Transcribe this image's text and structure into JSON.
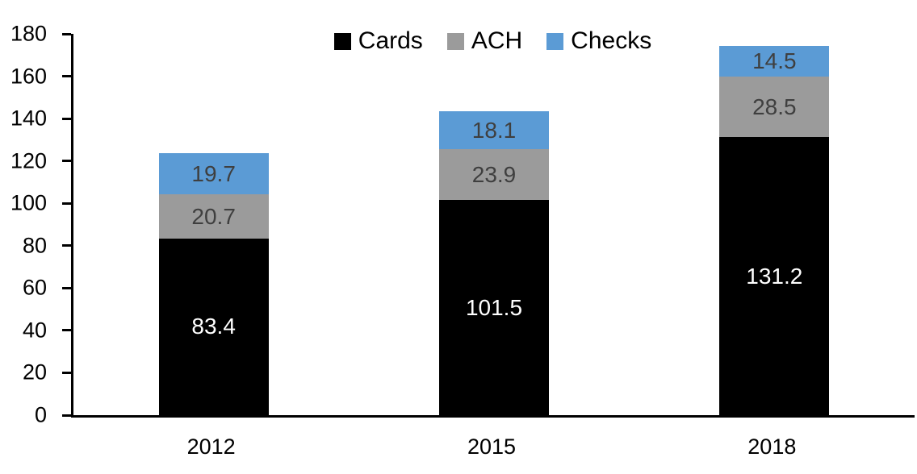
{
  "chart_data": {
    "type": "bar",
    "stacked": true,
    "categories": [
      "2012",
      "2015",
      "2018"
    ],
    "series": [
      {
        "name": "Cards",
        "color": "#000000",
        "label_color": "#ffffff",
        "values": [
          83.4,
          101.5,
          131.2
        ]
      },
      {
        "name": "ACH",
        "color": "#9b9b9b",
        "label_color": "#3f3f3f",
        "values": [
          20.7,
          23.9,
          28.5
        ]
      },
      {
        "name": "Checks",
        "color": "#5b9bd5",
        "label_color": "#3f3f3f",
        "values": [
          19.7,
          18.1,
          14.5
        ]
      }
    ],
    "ylim": [
      0,
      180
    ],
    "yticks": [
      0,
      20,
      40,
      60,
      80,
      100,
      120,
      140,
      160,
      180
    ],
    "grid": false,
    "legend_position": "top",
    "axis_color": "#000000",
    "background_color": "#ffffff"
  }
}
